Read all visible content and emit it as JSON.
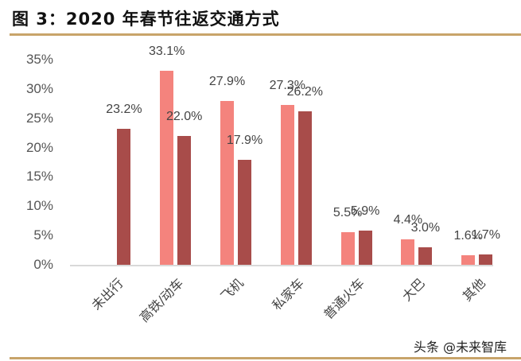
{
  "header": {
    "title": "图 3：2020 年春节往返交通方式"
  },
  "watermark": "头条 @未来智库",
  "colors": {
    "series_light": "#f4837d",
    "series_dark": "#a84c4a",
    "rule": "#c8a46a"
  },
  "chart_data": {
    "type": "bar",
    "title": "图 3：2020 年春节往返交通方式",
    "categories": [
      "未出行",
      "高铁/动车",
      "飞机",
      "私家车",
      "普通火车",
      "大巴",
      "其他"
    ],
    "series": [
      {
        "name": "series_light",
        "values": [
          null,
          33.1,
          27.9,
          27.3,
          5.5,
          4.4,
          1.6
        ]
      },
      {
        "name": "series_dark",
        "values": [
          23.2,
          22.0,
          17.9,
          26.2,
          5.9,
          3.0,
          1.7
        ]
      }
    ],
    "data_labels": {
      "series_light": [
        "",
        "33.1%",
        "27.9%",
        "27.3%",
        "5.5%",
        "4.4%",
        "1.6%"
      ],
      "series_dark": [
        "23.2%",
        "22.0%",
        "17.9%",
        "26.2%",
        "5.9%",
        "3.0%",
        "1.7%"
      ]
    },
    "xlabel": "",
    "ylabel": "",
    "ylim": [
      0,
      35
    ],
    "yticks": [
      "0%",
      "5%",
      "10%",
      "15%",
      "20%",
      "25%",
      "30%",
      "35%"
    ],
    "grid": false,
    "legend": "none"
  }
}
